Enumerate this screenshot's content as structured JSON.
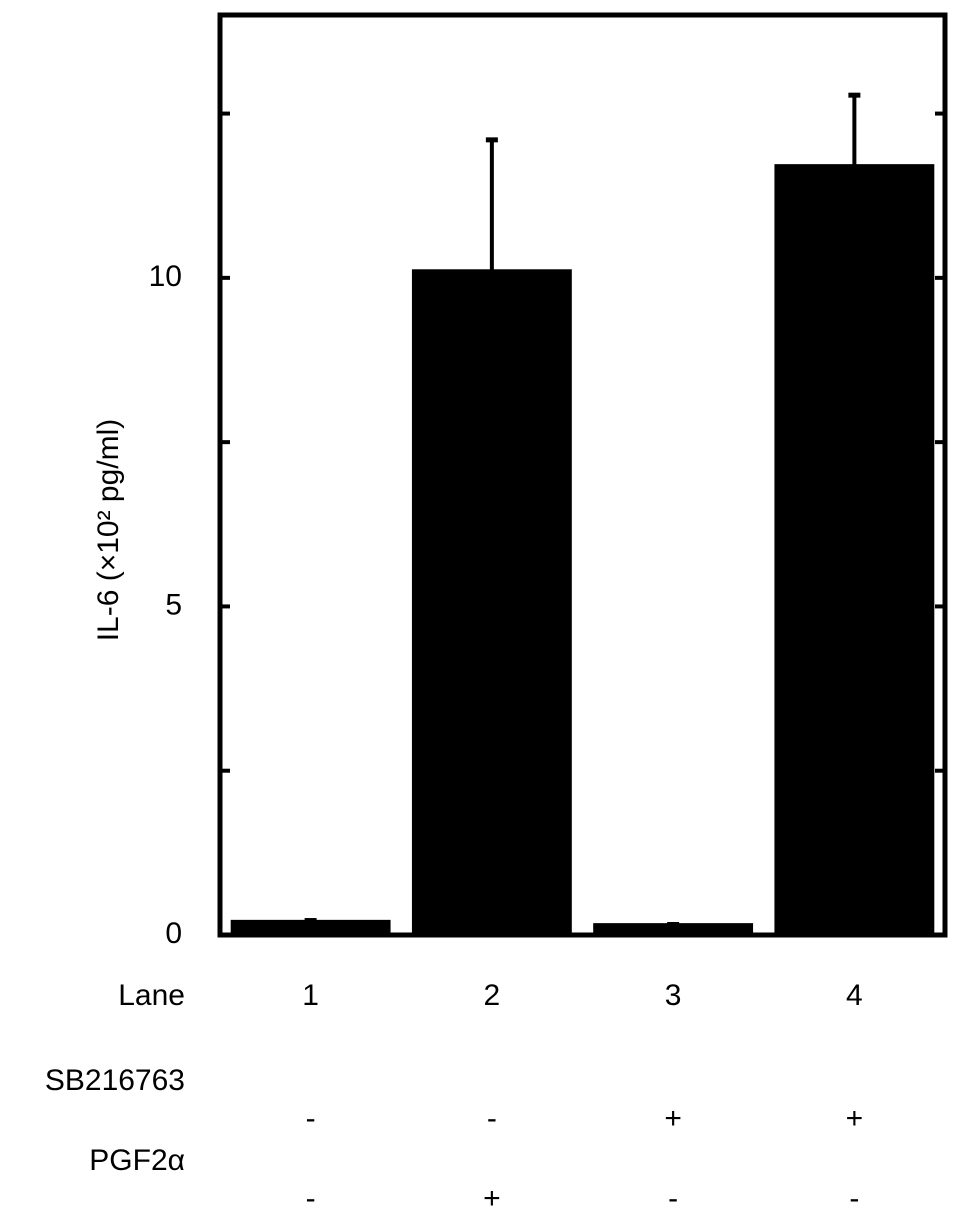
{
  "chart_data": {
    "type": "bar",
    "y_label": "IL-6 (×10² pg/ml)",
    "category_label": "Lane",
    "categories": [
      "1",
      "2",
      "3",
      "4"
    ],
    "values": [
      0.2,
      10.1,
      0.15,
      11.7
    ],
    "errors": [
      0.02,
      2.0,
      0.01,
      1.08
    ],
    "color": "#000000",
    "ylim": [
      0,
      14
    ],
    "yticks": [
      0,
      5,
      10
    ],
    "minor_yticks": [
      2.5,
      7.5,
      12.5
    ],
    "treatments": [
      {
        "name": "SB216763",
        "marks": [
          "-",
          "-",
          "+",
          "+"
        ]
      },
      {
        "name": "PGF2α",
        "marks": [
          "-",
          "+",
          "-",
          "-"
        ]
      }
    ]
  }
}
